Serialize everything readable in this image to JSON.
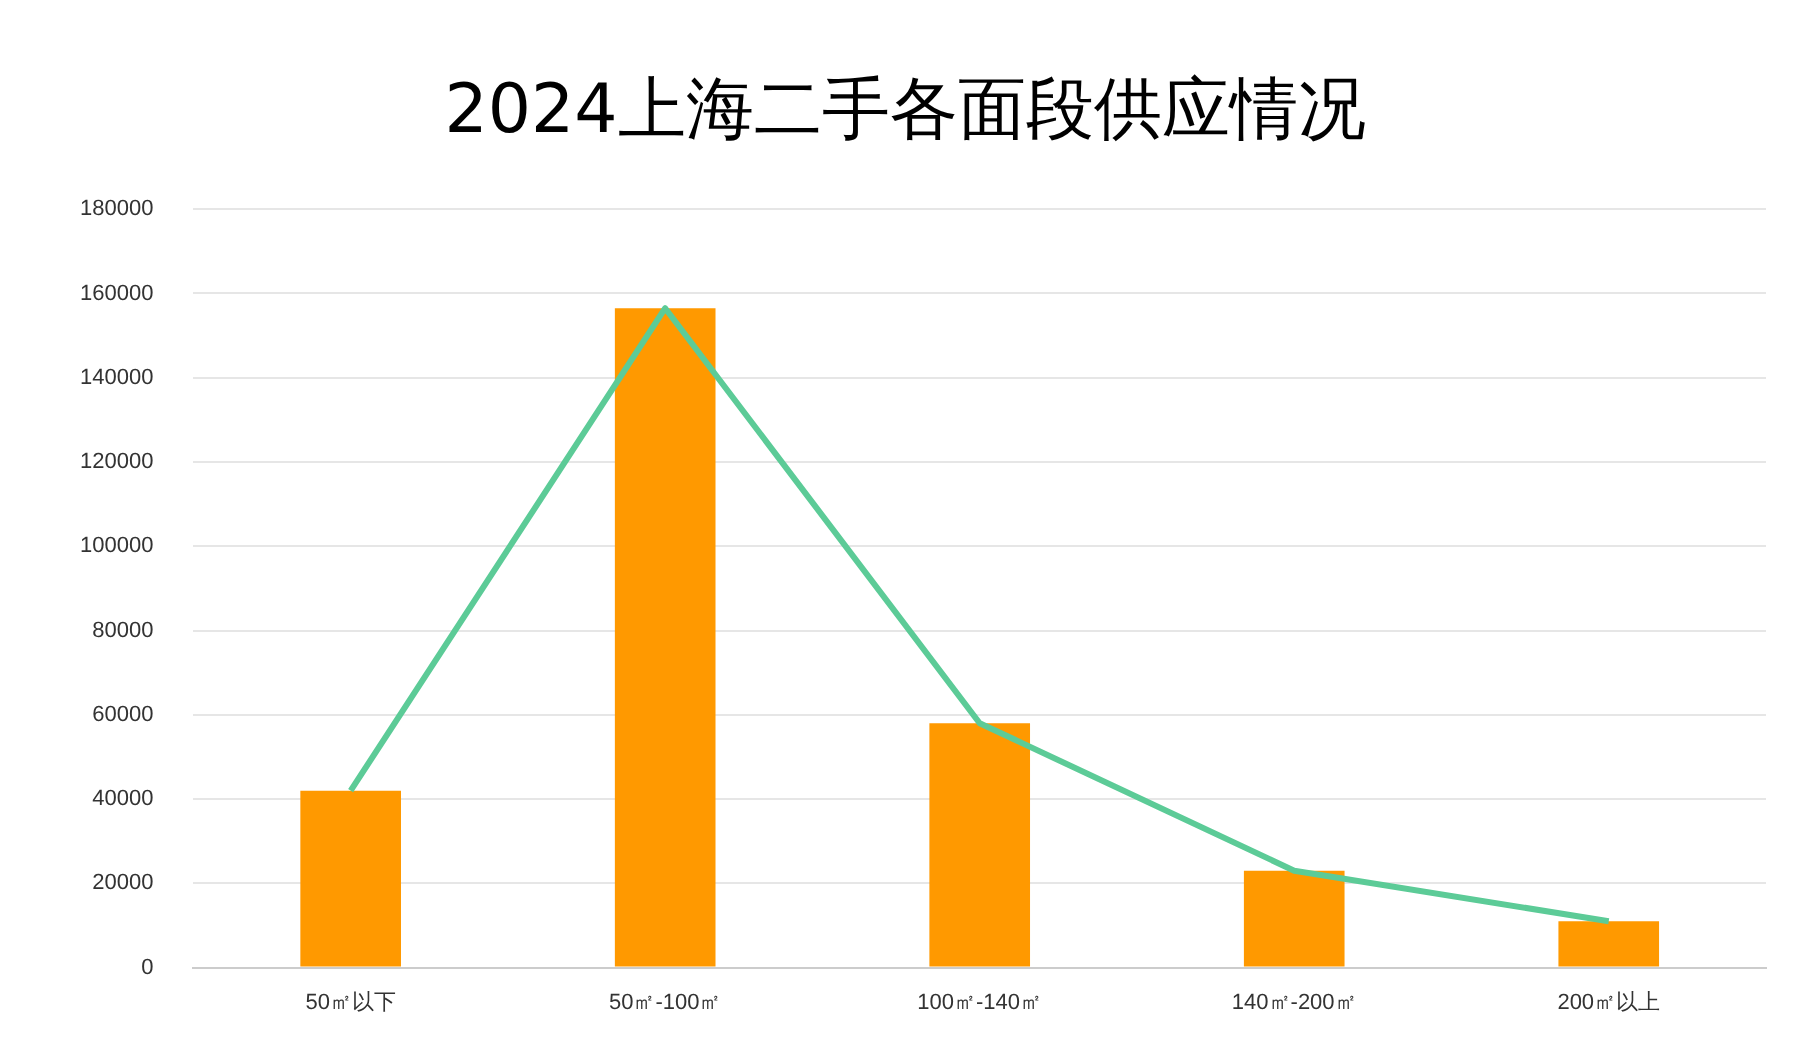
{
  "chart_data": {
    "type": "bar",
    "title": "2024上海二手各面段供应情况",
    "categories": [
      "50㎡以下",
      "50㎡-100㎡",
      "100㎡-140㎡",
      "140㎡-200㎡",
      "200㎡以上"
    ],
    "series": [
      {
        "color": "#ff9900",
        "values": [
          42000,
          156500,
          58000,
          23000,
          11000
        ]
      },
      {
        "type": "line",
        "color": "#5ccb97",
        "values": [
          42000,
          156500,
          58000,
          23000,
          11000
        ]
      }
    ],
    "ylim": [
      0,
      180000
    ],
    "yticks": [
      0,
      20000,
      40000,
      60000,
      80000,
      100000,
      120000,
      140000,
      160000,
      180000
    ],
    "grid": "y",
    "marker": "none",
    "line_style": "solid"
  }
}
